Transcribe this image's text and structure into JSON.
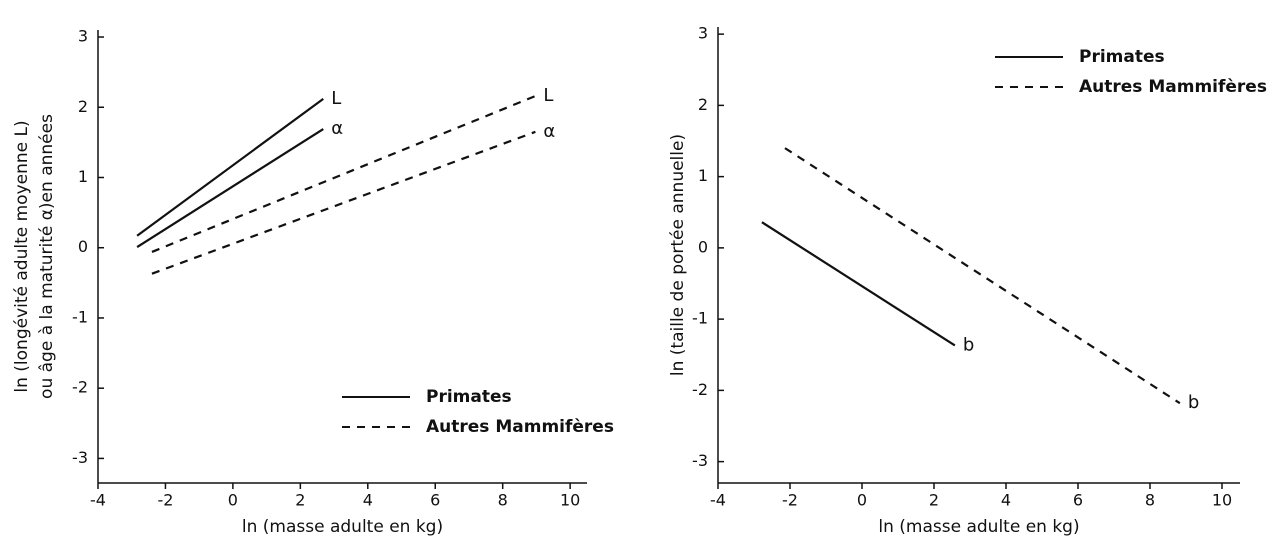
{
  "chart_data": [
    {
      "type": "line",
      "xlabel": "ln (masse adulte en kg)",
      "ylabel": [
        "ln (longévité adulte moyenne L)",
        "ou âge à la maturité α)en années"
      ],
      "xlim": [
        -4,
        10.5
      ],
      "ylim": [
        -3.35,
        3.1
      ],
      "xticks": [
        -4,
        -2,
        0,
        2,
        4,
        6,
        8,
        10
      ],
      "yticks": [
        -3,
        -2,
        -1,
        0,
        1,
        2,
        3
      ],
      "legend": "lower right",
      "series": [
        {
          "name": "Primates",
          "label": "L",
          "color": "#111111",
          "linestyle": "solid",
          "x": [
            -2.84,
            2.68
          ],
          "values": [
            0.17,
            2.12
          ]
        },
        {
          "name": "Primates",
          "label": "α",
          "color": "#111111",
          "linestyle": "solid",
          "x": [
            -2.84,
            2.68
          ],
          "values": [
            0.01,
            1.69
          ]
        },
        {
          "name": "Autres Mammifères",
          "label": "L",
          "color": "#111111",
          "linestyle": "dashed",
          "x": [
            -2.4,
            8.97
          ],
          "values": [
            -0.06,
            2.16
          ]
        },
        {
          "name": "Autres Mammifères",
          "label": "α",
          "color": "#111111",
          "linestyle": "dashed",
          "x": [
            -2.4,
            8.97
          ],
          "values": [
            -0.37,
            1.65
          ]
        }
      ]
    },
    {
      "type": "line",
      "xlabel": "ln (masse adulte en kg)",
      "ylabel": [
        "ln (taille de portée annuelle)"
      ],
      "xlim": [
        -4,
        10.5
      ],
      "ylim": [
        -3.3,
        3.1
      ],
      "xticks": [
        -4,
        -2,
        0,
        2,
        4,
        6,
        8,
        10
      ],
      "yticks": [
        -3,
        -2,
        -1,
        0,
        1,
        2,
        3
      ],
      "legend": "upper right",
      "series": [
        {
          "name": "Primates",
          "label": "b",
          "color": "#111111",
          "linestyle": "solid",
          "x": [
            -2.78,
            2.58
          ],
          "values": [
            0.36,
            -1.37
          ]
        },
        {
          "name": "Autres Mammifères",
          "label": "b",
          "color": "#111111",
          "linestyle": "dashed",
          "x": [
            -2.14,
            8.83
          ],
          "values": [
            1.4,
            -2.18
          ]
        }
      ]
    }
  ]
}
